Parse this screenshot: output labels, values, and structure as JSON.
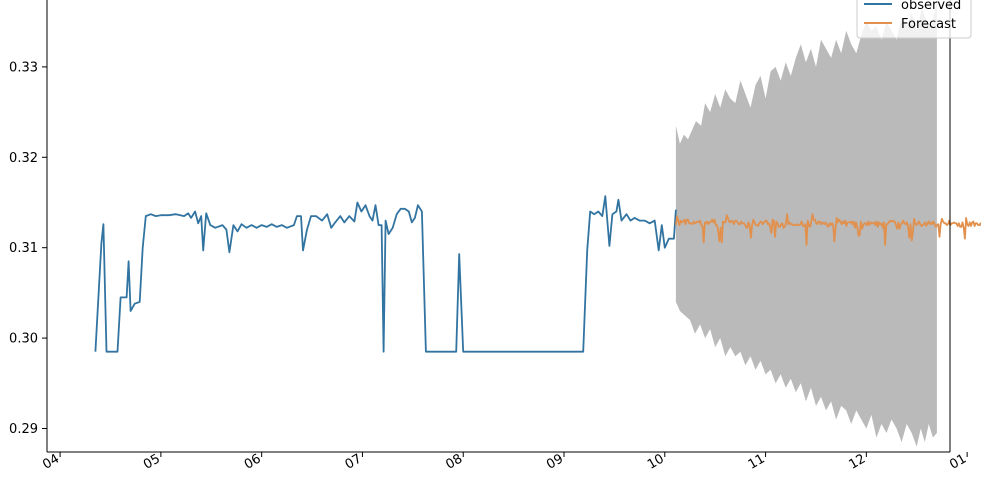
{
  "chart_data": {
    "type": "line",
    "title": "",
    "xlabel": "",
    "ylabel": "",
    "xlim": [
      -1.3,
      88.3
    ],
    "ylim": [
      0.2874,
      0.3374
    ],
    "x_ticks": [
      {
        "x": 0,
        "label": "04"
      },
      {
        "x": 10,
        "label": "05"
      },
      {
        "x": 20,
        "label": "06"
      },
      {
        "x": 30,
        "label": "07"
      },
      {
        "x": 40,
        "label": "08"
      },
      {
        "x": 50,
        "label": "09"
      },
      {
        "x": 60,
        "label": "10"
      },
      {
        "x": 70,
        "label": "11"
      },
      {
        "x": 80,
        "label": "12"
      },
      {
        "x": 90,
        "label": "01"
      }
    ],
    "y_ticks": [
      {
        "y": 0.29,
        "label": "0.29"
      },
      {
        "y": 0.3,
        "label": "0.30"
      },
      {
        "y": 0.31,
        "label": "0.31"
      },
      {
        "y": 0.32,
        "label": "0.32"
      },
      {
        "y": 0.33,
        "label": "0.33"
      }
    ],
    "legend": {
      "placement": "top-right"
    },
    "series": [
      {
        "name": "observed",
        "color": "#3274a1",
        "points": [
          [
            3.5,
            0.2985
          ],
          [
            4.1,
            0.3105
          ],
          [
            4.3,
            0.3126
          ],
          [
            4.6,
            0.2985
          ],
          [
            5.7,
            0.2985
          ],
          [
            6.0,
            0.3045
          ],
          [
            6.6,
            0.3045
          ],
          [
            6.8,
            0.3085
          ],
          [
            7.0,
            0.303
          ],
          [
            7.4,
            0.3038
          ],
          [
            7.9,
            0.304
          ],
          [
            8.2,
            0.31
          ],
          [
            8.5,
            0.3135
          ],
          [
            9.0,
            0.3137
          ],
          [
            9.5,
            0.3135
          ],
          [
            10.0,
            0.3136
          ],
          [
            10.8,
            0.3136
          ],
          [
            11.5,
            0.3137
          ],
          [
            12.3,
            0.3135
          ],
          [
            12.7,
            0.3138
          ],
          [
            13.0,
            0.3133
          ],
          [
            13.4,
            0.314
          ],
          [
            13.7,
            0.3127
          ],
          [
            14.0,
            0.3135
          ],
          [
            14.2,
            0.3097
          ],
          [
            14.5,
            0.3138
          ],
          [
            14.9,
            0.3125
          ],
          [
            15.4,
            0.3122
          ],
          [
            16.1,
            0.3125
          ],
          [
            16.5,
            0.312
          ],
          [
            16.8,
            0.3095
          ],
          [
            17.2,
            0.3125
          ],
          [
            17.6,
            0.3118
          ],
          [
            18.0,
            0.3126
          ],
          [
            18.5,
            0.3122
          ],
          [
            19.0,
            0.3125
          ],
          [
            19.5,
            0.3122
          ],
          [
            20.0,
            0.3125
          ],
          [
            20.5,
            0.3123
          ],
          [
            21.0,
            0.3126
          ],
          [
            21.5,
            0.3123
          ],
          [
            22.0,
            0.3125
          ],
          [
            22.5,
            0.3122
          ],
          [
            23.2,
            0.3125
          ],
          [
            23.5,
            0.3135
          ],
          [
            23.9,
            0.3135
          ],
          [
            24.1,
            0.3097
          ],
          [
            24.5,
            0.312
          ],
          [
            24.9,
            0.3135
          ],
          [
            25.4,
            0.3135
          ],
          [
            26.0,
            0.313
          ],
          [
            26.5,
            0.3137
          ],
          [
            26.9,
            0.3122
          ],
          [
            27.3,
            0.3128
          ],
          [
            27.8,
            0.3135
          ],
          [
            28.2,
            0.3128
          ],
          [
            28.7,
            0.3135
          ],
          [
            29.2,
            0.3129
          ],
          [
            29.5,
            0.315
          ],
          [
            29.9,
            0.314
          ],
          [
            30.3,
            0.3147
          ],
          [
            30.7,
            0.3135
          ],
          [
            31.0,
            0.313
          ],
          [
            31.3,
            0.3147
          ],
          [
            31.6,
            0.3125
          ],
          [
            31.9,
            0.3125
          ],
          [
            32.1,
            0.2985
          ],
          [
            32.3,
            0.313
          ],
          [
            32.6,
            0.3115
          ],
          [
            33.0,
            0.3122
          ],
          [
            33.4,
            0.3137
          ],
          [
            33.8,
            0.3143
          ],
          [
            34.2,
            0.3143
          ],
          [
            34.6,
            0.314
          ],
          [
            34.9,
            0.3128
          ],
          [
            35.2,
            0.3133
          ],
          [
            35.5,
            0.3147
          ],
          [
            35.9,
            0.314
          ],
          [
            36.3,
            0.2985
          ],
          [
            39.3,
            0.2985
          ],
          [
            39.6,
            0.3093
          ],
          [
            40.0,
            0.2985
          ],
          [
            51.9,
            0.2985
          ],
          [
            52.3,
            0.3097
          ],
          [
            52.6,
            0.314
          ],
          [
            53.0,
            0.3137
          ],
          [
            53.4,
            0.314
          ],
          [
            53.8,
            0.3135
          ],
          [
            54.1,
            0.3157
          ],
          [
            54.5,
            0.3102
          ],
          [
            54.8,
            0.3137
          ],
          [
            55.2,
            0.314
          ],
          [
            55.4,
            0.3153
          ],
          [
            55.7,
            0.313
          ],
          [
            56.2,
            0.3137
          ],
          [
            56.6,
            0.313
          ],
          [
            57.0,
            0.3133
          ],
          [
            57.5,
            0.313
          ],
          [
            58.0,
            0.313
          ],
          [
            58.5,
            0.3127
          ],
          [
            59.0,
            0.313
          ],
          [
            59.4,
            0.3097
          ],
          [
            59.7,
            0.3125
          ],
          [
            60.0,
            0.31
          ],
          [
            60.4,
            0.311
          ],
          [
            60.9,
            0.311
          ],
          [
            61.1,
            0.3142
          ]
        ]
      },
      {
        "name": "Forecast",
        "color": "#e1914d",
        "start_x": 61.1,
        "step": 0.12,
        "values": [
          0.3125,
          0.3135,
          0.313,
          0.3125,
          0.313,
          0.3128,
          0.3129,
          0.3131,
          0.3126,
          0.3131,
          0.3131,
          0.3127,
          0.3127,
          0.3127,
          0.3126,
          0.3129,
          0.3127,
          0.3128,
          0.3129,
          0.3128,
          0.313,
          0.3125,
          0.3124,
          0.3106,
          0.3128,
          0.3127,
          0.3129,
          0.3126,
          0.3128,
          0.3129,
          0.3131,
          0.3128,
          0.3131,
          0.3125,
          0.3125,
          0.3118,
          0.3107,
          0.3122,
          0.3106,
          0.3129,
          0.3128,
          0.3128,
          0.3136,
          0.3133,
          0.3129,
          0.3128,
          0.313,
          0.3129,
          0.3126,
          0.313,
          0.313,
          0.3128,
          0.3126,
          0.3126,
          0.3129,
          0.3127,
          0.3127,
          0.3126,
          0.3123,
          0.3122,
          0.3128,
          0.3125,
          0.3111,
          0.3125,
          0.3131,
          0.3128,
          0.3125,
          0.3125,
          0.3124,
          0.3127,
          0.3129,
          0.3128,
          0.3126,
          0.3128,
          0.313,
          0.313,
          0.3126,
          0.3127,
          0.3123,
          0.3116,
          0.3131,
          0.313,
          0.3112,
          0.3129,
          0.3127,
          0.3123,
          0.3123,
          0.3126,
          0.3127,
          0.3122,
          0.3123,
          0.3127,
          0.3137,
          0.3126,
          0.3128,
          0.3126,
          0.3126,
          0.3125,
          0.3125,
          0.3125,
          0.3126,
          0.3125,
          0.3125,
          0.3126,
          0.3129,
          0.3124,
          0.3124,
          0.3126,
          0.3103,
          0.313,
          0.3125,
          0.3123,
          0.3129,
          0.3137,
          0.3131,
          0.3131,
          0.3127,
          0.3126,
          0.3129,
          0.3129,
          0.3126,
          0.3128,
          0.3127,
          0.3126,
          0.3128,
          0.3125,
          0.3123,
          0.3127,
          0.3125,
          0.3127,
          0.3126,
          0.3107,
          0.3121,
          0.3133,
          0.3128,
          0.3131,
          0.3129,
          0.3126,
          0.3129,
          0.3127,
          0.313,
          0.3124,
          0.3128,
          0.3128,
          0.3128,
          0.3129,
          0.3126,
          0.3129,
          0.3122,
          0.3128,
          0.3123,
          0.3113,
          0.3114,
          0.3129,
          0.3121,
          0.3125,
          0.3127,
          0.3127,
          0.3125,
          0.3129,
          0.3125,
          0.3128,
          0.3127,
          0.3127,
          0.3128,
          0.3125,
          0.3129,
          0.3123,
          0.3128,
          0.3126,
          0.3127,
          0.3122,
          0.3128,
          0.3103,
          0.3126,
          0.3126,
          0.3128,
          0.313,
          0.3129,
          0.313,
          0.3129,
          0.3129,
          0.3125,
          0.3121,
          0.3128,
          0.3121,
          0.3126,
          0.3127,
          0.313,
          0.3127,
          0.3126,
          0.3128,
          0.3123,
          0.3111,
          0.3126,
          0.3108,
          0.3117,
          0.3132,
          0.3127,
          0.3125,
          0.3127,
          0.3129,
          0.3126,
          0.3124,
          0.3125,
          0.3126,
          0.3128,
          0.3124,
          0.3127,
          0.3129,
          0.3126,
          0.3128,
          0.3126,
          0.3129,
          0.3126,
          0.3123,
          0.3125,
          0.3126,
          0.3112,
          0.3126,
          0.3132,
          0.3129,
          0.3127,
          0.3127,
          0.3125,
          0.3126,
          0.313,
          0.3125,
          0.3127,
          0.3127,
          0.3128,
          0.3127,
          0.3127,
          0.3124,
          0.3127,
          0.3123,
          0.3123,
          0.3128,
          0.3122,
          0.311,
          0.3133,
          0.3126,
          0.3124,
          0.3128,
          0.3124,
          0.3128,
          0.3129,
          0.3124,
          0.3127,
          0.3127,
          0.3125,
          0.3125,
          0.3127,
          0.3124,
          0.3126,
          0.3125,
          0.3124,
          0.3126,
          0.3125,
          0.3115,
          0.3107,
          0.3115,
          0.3127,
          0.3129,
          0.3134,
          0.3125,
          0.3123,
          0.3125,
          0.3126,
          0.3126,
          0.3124,
          0.3125,
          0.3126,
          0.3128,
          0.3131,
          0.3128,
          0.3129,
          0.3125,
          0.3128,
          0.3125,
          0.3128,
          0.3129,
          0.3111,
          0.3109
        ]
      }
    ],
    "confidence_band": {
      "color": "#bababa",
      "upper": [
        [
          61.1,
          0.3235
        ],
        [
          61.5,
          0.3215
        ],
        [
          61.9,
          0.3225
        ],
        [
          62.3,
          0.322
        ],
        [
          62.7,
          0.323
        ],
        [
          63.1,
          0.324
        ],
        [
          63.6,
          0.3235
        ],
        [
          64.0,
          0.326
        ],
        [
          64.5,
          0.325
        ],
        [
          65.0,
          0.327
        ],
        [
          65.5,
          0.3255
        ],
        [
          66.0,
          0.3275
        ],
        [
          66.5,
          0.3265
        ],
        [
          67.0,
          0.326
        ],
        [
          67.5,
          0.3285
        ],
        [
          68.0,
          0.327
        ],
        [
          68.5,
          0.3255
        ],
        [
          69.0,
          0.328
        ],
        [
          69.5,
          0.329
        ],
        [
          70.0,
          0.3265
        ],
        [
          70.5,
          0.3295
        ],
        [
          71.0,
          0.33
        ],
        [
          71.5,
          0.3285
        ],
        [
          72.0,
          0.3305
        ],
        [
          72.5,
          0.329
        ],
        [
          73.0,
          0.331
        ],
        [
          73.5,
          0.3325
        ],
        [
          74.0,
          0.3305
        ],
        [
          74.5,
          0.332
        ],
        [
          75.0,
          0.33
        ],
        [
          75.5,
          0.333
        ],
        [
          76.0,
          0.332
        ],
        [
          76.5,
          0.331
        ],
        [
          77.0,
          0.333
        ],
        [
          77.5,
          0.3315
        ],
        [
          78.0,
          0.334
        ],
        [
          78.5,
          0.3325
        ],
        [
          79.0,
          0.3315
        ],
        [
          79.5,
          0.3335
        ],
        [
          80.0,
          0.335
        ],
        [
          80.5,
          0.334
        ],
        [
          81.0,
          0.3345
        ],
        [
          81.5,
          0.333
        ],
        [
          82.0,
          0.335
        ],
        [
          82.5,
          0.334
        ],
        [
          83.0,
          0.333
        ],
        [
          83.5,
          0.3355
        ],
        [
          84.0,
          0.3345
        ],
        [
          84.5,
          0.336
        ],
        [
          85.0,
          0.334
        ],
        [
          85.5,
          0.3365
        ],
        [
          86.0,
          0.335
        ],
        [
          86.5,
          0.3345
        ],
        [
          87.0,
          0.3374
        ]
      ],
      "lower": [
        [
          87.0,
          0.2895
        ],
        [
          86.6,
          0.289
        ],
        [
          86.2,
          0.2905
        ],
        [
          85.8,
          0.2885
        ],
        [
          85.4,
          0.29
        ],
        [
          85.0,
          0.288
        ],
        [
          84.5,
          0.2895
        ],
        [
          84.0,
          0.2905
        ],
        [
          83.5,
          0.2885
        ],
        [
          83.0,
          0.29
        ],
        [
          82.5,
          0.291
        ],
        [
          82.0,
          0.2895
        ],
        [
          81.5,
          0.2905
        ],
        [
          81.0,
          0.289
        ],
        [
          80.5,
          0.2915
        ],
        [
          80.0,
          0.29
        ],
        [
          79.5,
          0.291
        ],
        [
          79.0,
          0.292
        ],
        [
          78.5,
          0.2905
        ],
        [
          78.0,
          0.292
        ],
        [
          77.5,
          0.2925
        ],
        [
          77.0,
          0.291
        ],
        [
          76.5,
          0.293
        ],
        [
          76.0,
          0.292
        ],
        [
          75.5,
          0.2935
        ],
        [
          75.0,
          0.2925
        ],
        [
          74.5,
          0.2945
        ],
        [
          74.0,
          0.293
        ],
        [
          73.5,
          0.295
        ],
        [
          73.0,
          0.294
        ],
        [
          72.5,
          0.2955
        ],
        [
          72.0,
          0.2945
        ],
        [
          71.5,
          0.296
        ],
        [
          71.0,
          0.295
        ],
        [
          70.5,
          0.2965
        ],
        [
          70.0,
          0.296
        ],
        [
          69.5,
          0.2975
        ],
        [
          69.0,
          0.2965
        ],
        [
          68.5,
          0.298
        ],
        [
          68.0,
          0.297
        ],
        [
          67.5,
          0.2985
        ],
        [
          67.0,
          0.298
        ],
        [
          66.5,
          0.299
        ],
        [
          66.0,
          0.298
        ],
        [
          65.5,
          0.3
        ],
        [
          65.0,
          0.299
        ],
        [
          64.5,
          0.301
        ],
        [
          64.0,
          0.3
        ],
        [
          63.5,
          0.3015
        ],
        [
          63.0,
          0.3005
        ],
        [
          62.5,
          0.302
        ],
        [
          62.0,
          0.3025
        ],
        [
          61.5,
          0.303
        ],
        [
          61.1,
          0.304
        ]
      ]
    }
  }
}
